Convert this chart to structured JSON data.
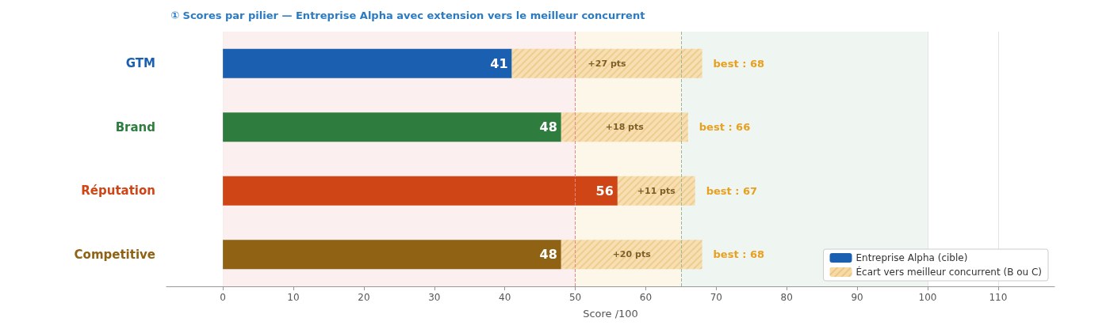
{
  "chart_data": {
    "type": "bar",
    "orientation": "horizontal",
    "stacked": true,
    "title": "① Scores par pilier — Entreprise Alpha avec extension vers le meilleur concurrent",
    "xlabel": "Score /100",
    "categories": [
      "GTM",
      "Brand",
      "Réputation",
      "Competitive"
    ],
    "series": [
      {
        "name": "Entreprise Alpha (cible)",
        "color": "#1a5fb0",
        "colors": [
          "#1a5fb0",
          "#2e7d3e",
          "#d04515",
          "#8f6214"
        ],
        "values": [
          41,
          48,
          56,
          48
        ],
        "value_labels": [
          "41",
          "48",
          "56",
          "48"
        ]
      },
      {
        "name": "Écart vers meilleur concurrent (B ou C)",
        "color": "#f6dba8",
        "values": [
          27,
          18,
          11,
          20
        ],
        "value_labels": [
          "+27 pts",
          "+18 pts",
          "+11 pts",
          "+20 pts"
        ]
      }
    ],
    "totals": [
      "best : 68",
      "best : 66",
      "best : 67",
      "best : 68"
    ],
    "xlim": [
      -8,
      118
    ],
    "xticks": [
      0,
      10,
      20,
      30,
      40,
      50,
      60,
      70,
      80,
      90,
      100,
      110
    ],
    "bands": [
      {
        "axis": "x",
        "from": 0,
        "to": 50,
        "color": "#fbefef"
      },
      {
        "axis": "x",
        "from": 50,
        "to": 65,
        "color": "#fdf7ea"
      },
      {
        "axis": "x",
        "from": 65,
        "to": 100,
        "color": "#eff5f0"
      }
    ],
    "ref_lines": [
      {
        "axis": "x",
        "value": 50,
        "color": "#e08888",
        "line_style": "dashed"
      },
      {
        "axis": "x",
        "value": 65,
        "color": "#98b898",
        "line_style": "dashed"
      }
    ],
    "grid": "x",
    "legend": "bottom right"
  }
}
